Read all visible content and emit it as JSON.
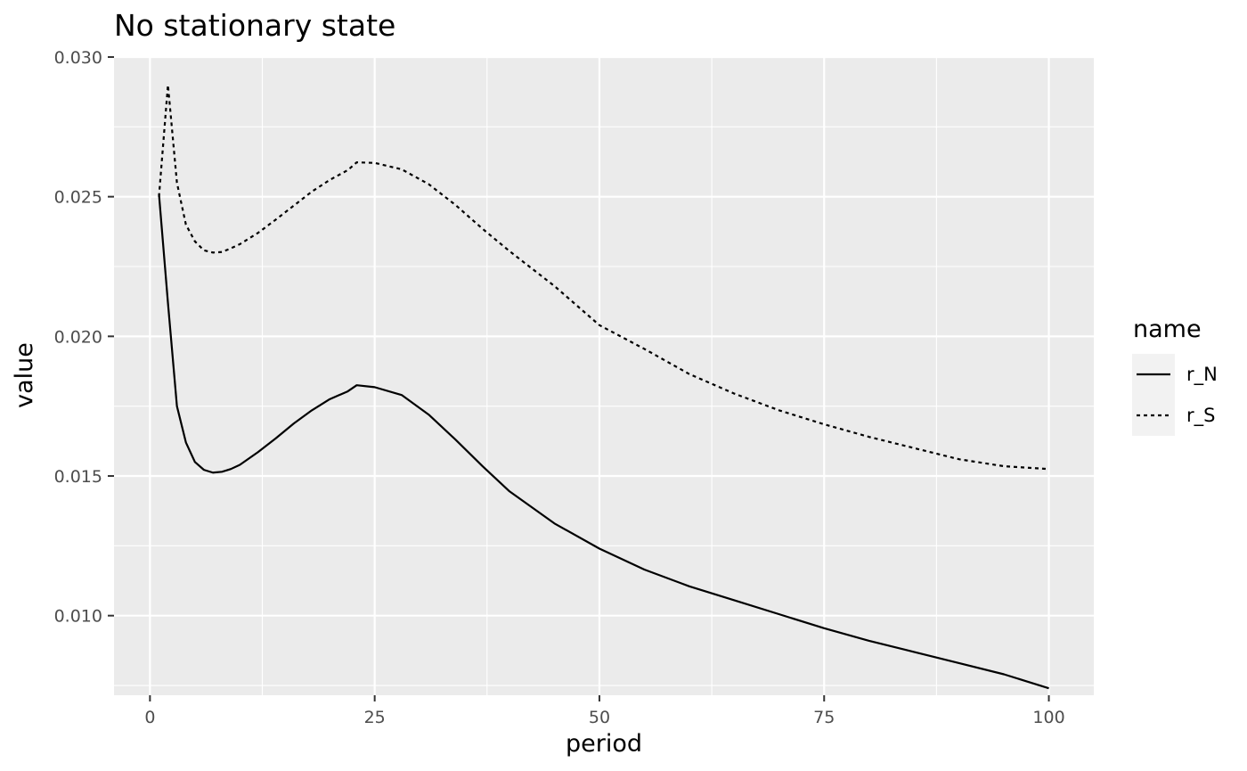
{
  "chart_data": {
    "type": "line",
    "title": "No stationary state",
    "xlabel": "period",
    "ylabel": "value",
    "xlim": [
      -4,
      105
    ],
    "ylim": [
      0.00715,
      0.03
    ],
    "x_ticks": [
      0,
      25,
      50,
      75,
      100
    ],
    "x_tick_labels": [
      "0",
      "25",
      "50",
      "75",
      "100"
    ],
    "y_ticks": [
      0.01,
      0.015,
      0.02,
      0.025,
      0.03
    ],
    "y_tick_labels": [
      "0.010",
      "0.015",
      "0.020",
      "0.025",
      "0.030"
    ],
    "grid": true,
    "legend": {
      "title": "name",
      "position": "right",
      "entries": [
        {
          "label": "r_N",
          "linetype": "solid"
        },
        {
          "label": "r_S",
          "linetype": "dotted"
        }
      ]
    },
    "series": [
      {
        "name": "r_N",
        "linetype": "solid",
        "color": "#000000",
        "x": [
          1,
          2,
          3,
          4,
          5,
          6,
          7,
          8,
          9,
          10,
          12,
          14,
          16,
          18,
          20,
          22,
          23,
          25,
          28,
          31,
          34,
          37,
          40,
          45,
          50,
          55,
          60,
          65,
          70,
          75,
          80,
          85,
          90,
          95,
          100
        ],
        "y": [
          0.0251,
          0.0212,
          0.0175,
          0.0162,
          0.0155,
          0.01522,
          0.01512,
          0.01515,
          0.01525,
          0.0154,
          0.01585,
          0.01635,
          0.01688,
          0.01735,
          0.01775,
          0.01803,
          0.01825,
          0.01818,
          0.0179,
          0.0172,
          0.0163,
          0.01535,
          0.01445,
          0.0133,
          0.0124,
          0.01165,
          0.01105,
          0.01055,
          0.01005,
          0.00955,
          0.0091,
          0.0087,
          0.0083,
          0.0079,
          0.0074
        ]
      },
      {
        "name": "r_S",
        "linetype": "dotted",
        "color": "#000000",
        "x": [
          1,
          2,
          3,
          4,
          5,
          6,
          7,
          8,
          9,
          10,
          12,
          14,
          16,
          18,
          20,
          22,
          23,
          25,
          28,
          31,
          34,
          37,
          40,
          45,
          50,
          55,
          60,
          65,
          70,
          75,
          80,
          85,
          90,
          95,
          100
        ],
        "y": [
          0.025,
          0.029,
          0.0255,
          0.024,
          0.0234,
          0.02308,
          0.023,
          0.02302,
          0.02315,
          0.0233,
          0.0237,
          0.02418,
          0.02468,
          0.02518,
          0.0256,
          0.02595,
          0.02623,
          0.02621,
          0.02598,
          0.02545,
          0.0247,
          0.02385,
          0.02305,
          0.0218,
          0.0204,
          0.01955,
          0.01865,
          0.01795,
          0.01735,
          0.01685,
          0.0164,
          0.016,
          0.0156,
          0.01535,
          0.01525
        ]
      }
    ]
  }
}
